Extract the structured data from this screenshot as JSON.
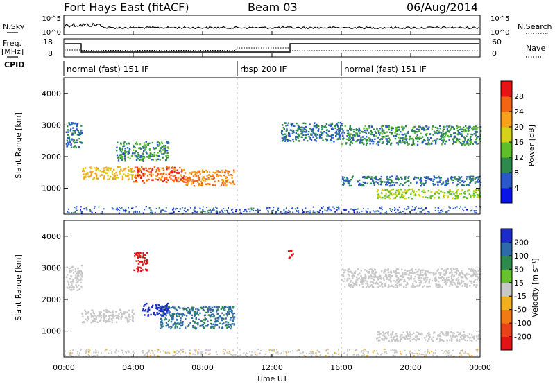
{
  "header": {
    "station": "Fort Hays East (fitACF)",
    "beam": "Beam 03",
    "date": "06/Aug/2014"
  },
  "top_panels": {
    "nsky_label": "N.Sky",
    "nsearch_label": "N.Search",
    "freq_label_line1": "Freq.",
    "freq_label_line2": "[MHz]",
    "nave_label": "Nave",
    "cpid_label": "CPID",
    "nsky_ticks": [
      "10^5",
      "10^0"
    ],
    "nsearch_ticks": [
      "10^5",
      "10^0"
    ],
    "freq_ticks": [
      "18",
      "8"
    ],
    "nave_ticks": [
      "60",
      "0"
    ]
  },
  "cpid_segments": [
    {
      "label": "normal (fast) 151 IF",
      "start_hour": 0,
      "end_hour": 10
    },
    {
      "label": "rbsp 200 IF",
      "start_hour": 10,
      "end_hour": 16
    },
    {
      "label": "normal (fast) 151 IF",
      "start_hour": 16,
      "end_hour": 24
    }
  ],
  "x_axis": {
    "label": "Time UT",
    "ticks": [
      "00:00",
      "04:00",
      "08:00",
      "12:00",
      "16:00",
      "20:00",
      "00:00"
    ]
  },
  "power_panel": {
    "ylabel": "Slant Range [km]",
    "yticks": [
      "1000",
      "2000",
      "3000",
      "4000"
    ],
    "colorbar_label": "Power [dB]",
    "colorbar_ticks": [
      "4",
      "8",
      "12",
      "16",
      "20",
      "24",
      "28"
    ],
    "colorbar_colors": [
      "#0a14e6",
      "#2a58c8",
      "#2e8a4c",
      "#5fbf2a",
      "#d4d21a",
      "#f7a21a",
      "#f26514",
      "#e61414"
    ]
  },
  "velocity_panel": {
    "ylabel": "Slant Range [km]",
    "yticks": [
      "1000",
      "2000",
      "3000",
      "4000"
    ],
    "colorbar_label": "Velocity [m s⁻¹]",
    "colorbar_ticks": [
      "200",
      "100",
      "50",
      "15",
      "-15",
      "-50",
      "-100",
      "-200"
    ],
    "colorbar_colors": [
      "#1c2cc8",
      "#2e6aa8",
      "#2e8a4c",
      "#66c32e",
      "#c8c8c8",
      "#f0b020",
      "#f07a14",
      "#e8421a",
      "#e01414"
    ]
  },
  "chart_data": {
    "type": "heatmap",
    "x_range_hours": [
      0,
      24
    ],
    "y_range_km": [
      180,
      4500
    ],
    "power_regions": [
      {
        "t0": 0.1,
        "t1": 1.0,
        "r0": 2300,
        "r1": 3100,
        "value_db": 8
      },
      {
        "t0": 1.0,
        "t1": 4.0,
        "r0": 1300,
        "r1": 1700,
        "value_db": 20
      },
      {
        "t0": 4.0,
        "t1": 7.0,
        "r0": 1200,
        "r1": 1700,
        "value_db": 26
      },
      {
        "t0": 7.0,
        "t1": 9.8,
        "r0": 1100,
        "r1": 1600,
        "value_db": 24
      },
      {
        "t0": 3.0,
        "t1": 6.0,
        "r0": 1900,
        "r1": 2500,
        "value_db": 10
      },
      {
        "t0": 12.5,
        "t1": 16.0,
        "r0": 2500,
        "r1": 3100,
        "value_db": 8
      },
      {
        "t0": 16.0,
        "t1": 24.0,
        "r0": 2400,
        "r1": 3000,
        "value_db": 10
      },
      {
        "t0": 16.0,
        "t1": 24.0,
        "r0": 1100,
        "r1": 1400,
        "value_db": 8
      },
      {
        "t0": 18.0,
        "t1": 24.0,
        "r0": 700,
        "r1": 1000,
        "value_db": 16
      }
    ],
    "velocity_regions": [
      {
        "t0": 0.1,
        "t1": 1.0,
        "r0": 2300,
        "r1": 3100,
        "value_ms": 0
      },
      {
        "t0": 1.0,
        "t1": 4.0,
        "r0": 1300,
        "r1": 1700,
        "value_ms": 0
      },
      {
        "t0": 5.5,
        "t1": 9.8,
        "r0": 1100,
        "r1": 1800,
        "value_ms": 80
      },
      {
        "t0": 4.5,
        "t1": 6.0,
        "r0": 1500,
        "r1": 1900,
        "value_ms": 200
      },
      {
        "t0": 4.0,
        "t1": 4.8,
        "r0": 2900,
        "r1": 3500,
        "value_ms": -200
      },
      {
        "t0": 12.9,
        "t1": 13.2,
        "r0": 3300,
        "r1": 3600,
        "value_ms": -200
      },
      {
        "t0": 16.0,
        "t1": 24.0,
        "r0": 2400,
        "r1": 3000,
        "value_ms": 0
      },
      {
        "t0": 18.0,
        "t1": 24.0,
        "r0": 700,
        "r1": 1000,
        "value_ms": 0
      }
    ]
  }
}
